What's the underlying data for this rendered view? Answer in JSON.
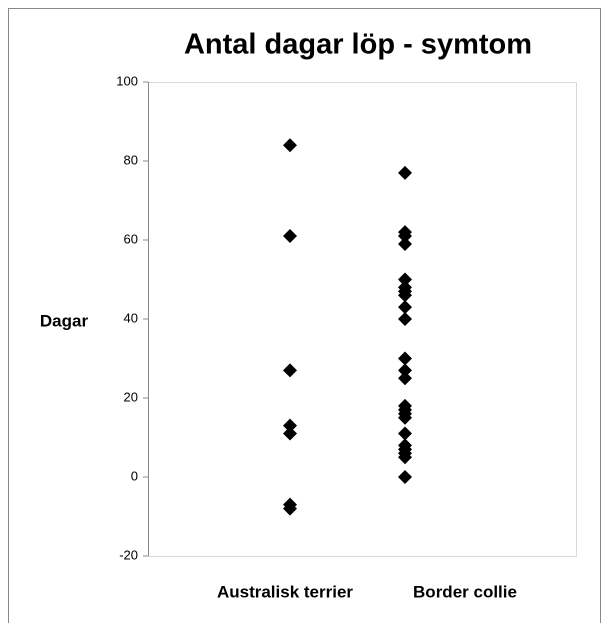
{
  "chart_data": {
    "type": "strip",
    "title": "Antal dagar löp - symtom",
    "y_label": "Dagar",
    "categories": [
      "Australisk terrier",
      "Border collie"
    ],
    "groups": [
      {
        "values": [
          84,
          61,
          27,
          13,
          11,
          -7,
          -8
        ]
      },
      {
        "values": [
          77,
          62,
          61,
          59,
          50,
          48,
          47,
          46,
          43,
          40,
          30,
          27,
          25,
          18,
          17,
          16,
          15,
          11,
          8,
          7,
          6,
          5,
          0
        ]
      }
    ],
    "color": "#000000",
    "ylim": [
      -20,
      100
    ],
    "yticks": [
      -20,
      0,
      20,
      40,
      60,
      80,
      100
    ],
    "grid": false
  }
}
